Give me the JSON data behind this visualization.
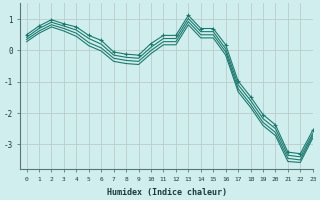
{
  "xlabel": "Humidex (Indice chaleur)",
  "xlim": [
    -0.5,
    23
  ],
  "ylim": [
    -3.8,
    1.5
  ],
  "bg_color": "#d0eeee",
  "grid_color": "#bbcccc",
  "line_color": "#1a7a6e",
  "lines": [
    [
      0.5,
      0.78,
      0.98,
      0.85,
      0.75,
      0.48,
      0.32,
      -0.05,
      -0.12,
      -0.15,
      0.22,
      0.48,
      0.48,
      1.12,
      0.7,
      0.7,
      0.18,
      -0.98,
      -1.48,
      -2.05,
      -2.38,
      -3.25,
      -3.3,
      -2.55
    ],
    [
      0.42,
      0.7,
      0.9,
      0.78,
      0.65,
      0.38,
      0.2,
      -0.15,
      -0.22,
      -0.25,
      0.1,
      0.38,
      0.38,
      1.02,
      0.6,
      0.6,
      0.05,
      -1.1,
      -1.6,
      -2.18,
      -2.5,
      -3.35,
      -3.4,
      -2.65
    ],
    [
      0.35,
      0.62,
      0.82,
      0.7,
      0.55,
      0.25,
      0.08,
      -0.25,
      -0.32,
      -0.35,
      0.0,
      0.28,
      0.28,
      0.92,
      0.5,
      0.5,
      -0.05,
      -1.22,
      -1.72,
      -2.3,
      -2.62,
      -3.45,
      -3.5,
      -2.72
    ],
    [
      0.28,
      0.55,
      0.75,
      0.62,
      0.45,
      0.15,
      -0.02,
      -0.35,
      -0.42,
      -0.45,
      -0.1,
      0.18,
      0.18,
      0.82,
      0.4,
      0.4,
      -0.15,
      -1.32,
      -1.82,
      -2.4,
      -2.72,
      -3.55,
      -3.58,
      -2.8
    ]
  ],
  "x": [
    0,
    1,
    2,
    3,
    4,
    5,
    6,
    7,
    8,
    9,
    10,
    11,
    12,
    13,
    14,
    15,
    16,
    17,
    18,
    19,
    20,
    21,
    22,
    23
  ],
  "yticks": [
    -3,
    -2,
    -1,
    0,
    1
  ],
  "xtick_labels": [
    "0",
    "1",
    "2",
    "3",
    "4",
    "5",
    "6",
    "7",
    "8",
    "9",
    "10",
    "11",
    "12",
    "13",
    "14",
    "15",
    "16",
    "17",
    "18",
    "19",
    "20",
    "21",
    "22",
    "23"
  ]
}
